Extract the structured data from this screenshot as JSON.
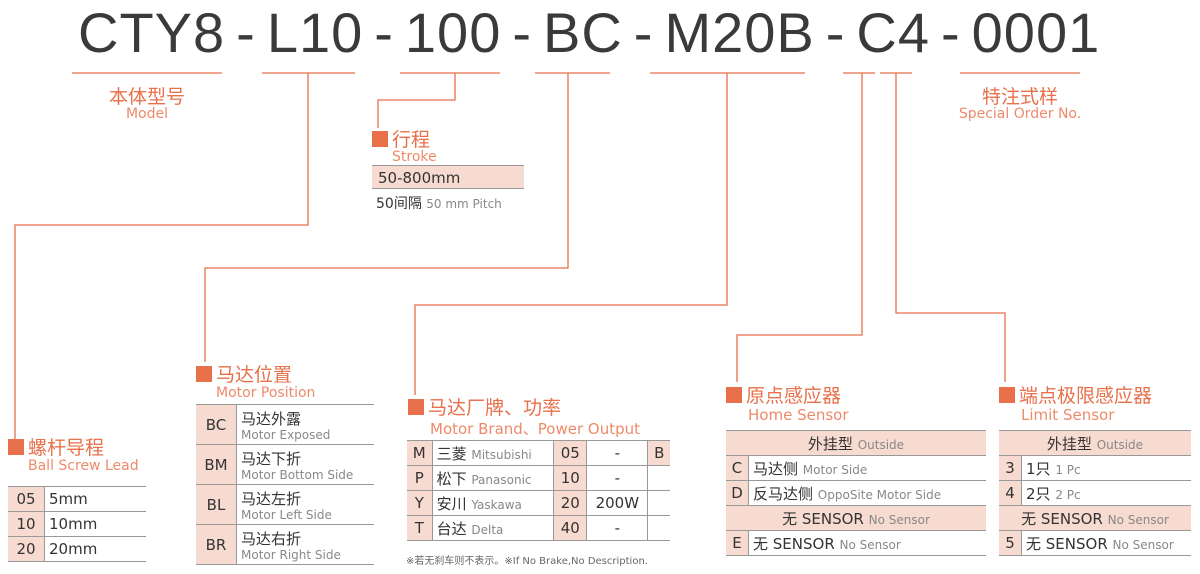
{
  "code": {
    "parts": [
      "CTY8",
      "L10",
      "100",
      "BC",
      "M20B",
      "C4",
      "0001"
    ],
    "sep": "-"
  },
  "accent": "#e8704a",
  "model": {
    "zh": "本体型号",
    "en": "Model"
  },
  "special": {
    "zh": "特注式样",
    "en": "Special Order No."
  },
  "stroke": {
    "zh": "行程",
    "en": "Stroke",
    "range": "50-800mm",
    "pitch_zh": "50间隔",
    "pitch_en": "50 mm Pitch"
  },
  "lead": {
    "zh": "螺杆导程",
    "en": "Ball Screw Lead",
    "rows": [
      [
        "05",
        "5mm"
      ],
      [
        "10",
        "10mm"
      ],
      [
        "20",
        "20mm"
      ]
    ]
  },
  "motor_pos": {
    "zh": "马达位置",
    "en": "Motor Position",
    "rows": [
      [
        "BC",
        "马达外露",
        "Motor Exposed"
      ],
      [
        "BM",
        "马达下折",
        "Motor Bottom Side"
      ],
      [
        "BL",
        "马达左折",
        "Motor Left Side"
      ],
      [
        "BR",
        "马达右折",
        "Motor Right Side"
      ]
    ]
  },
  "brand": {
    "zh": "马达厂牌、功率",
    "en": "Motor Brand、Power Output",
    "rows": [
      [
        "M",
        "三菱",
        "Mitsubishi",
        "05",
        "-",
        "B"
      ],
      [
        "P",
        "松下",
        "Panasonic",
        "10",
        "-",
        ""
      ],
      [
        "Y",
        "安川",
        "Yaskawa",
        "20",
        "200W",
        ""
      ],
      [
        "T",
        "台达",
        "Delta",
        "40",
        "-",
        ""
      ]
    ],
    "note": "※若无刹车则不表示。※If No Brake,No Description."
  },
  "home": {
    "zh": "原点感应器",
    "en": "Home Sensor",
    "outside_zh": "外挂型",
    "outside_en": "Outside",
    "rows": [
      [
        "C",
        "马达侧",
        "Motor Side"
      ],
      [
        "D",
        "反马达侧",
        "OppoSite Motor Side"
      ]
    ],
    "none_zh": "无 SENSOR",
    "none_en": "No Sensor",
    "none_row": [
      "E",
      "无 SENSOR",
      "No Sensor"
    ]
  },
  "limit": {
    "zh": "端点极限感应器",
    "en": "Limit Sensor",
    "outside_zh": "外挂型",
    "outside_en": "Outside",
    "rows": [
      [
        "3",
        "1只",
        "1 Pc"
      ],
      [
        "4",
        "2只",
        "2 Pc"
      ]
    ],
    "none_zh": "无 SENSOR",
    "none_en": "No Sensor",
    "none_row": [
      "5",
      "无 SENSOR",
      "No Sensor"
    ]
  }
}
